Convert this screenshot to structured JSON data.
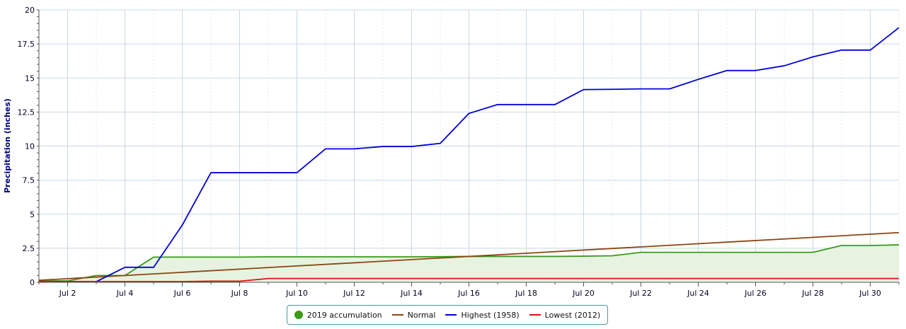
{
  "chart_data": {
    "type": "line",
    "title": "",
    "xlabel": "",
    "ylabel": "Precipitation (inches)",
    "ylim": [
      0,
      20
    ],
    "xlim": [
      1,
      31
    ],
    "y_ticks": [
      0,
      2.5,
      5,
      7.5,
      10,
      12.5,
      15,
      17.5,
      20
    ],
    "y_tick_labels": [
      "0",
      "2.5",
      "5",
      "7.5",
      "10",
      "12.5",
      "15",
      "17.5",
      "20"
    ],
    "x_ticks": [
      2,
      4,
      6,
      8,
      10,
      12,
      14,
      16,
      18,
      20,
      22,
      24,
      26,
      28,
      30
    ],
    "x_tick_labels": [
      "Jul 2",
      "Jul 4",
      "Jul 6",
      "Jul 8",
      "Jul 10",
      "Jul 12",
      "Jul 14",
      "Jul 16",
      "Jul 18",
      "Jul 20",
      "Jul 22",
      "Jul 24",
      "Jul 26",
      "Jul 28",
      "Jul 30"
    ],
    "grid": true,
    "legend_position": "bottom-center",
    "series": [
      {
        "name": "2019 accumulation",
        "color": "#3a9a1a",
        "fill": "#e6f3e0",
        "marker": "dot",
        "x": [
          1,
          2,
          3,
          4,
          5,
          6,
          7,
          8,
          9,
          10,
          11,
          12,
          13,
          14,
          15,
          16,
          17,
          18,
          19,
          20,
          21,
          22,
          23,
          24,
          25,
          26,
          27,
          28,
          29,
          30,
          31
        ],
        "values": [
          0.1,
          0.1,
          0.5,
          0.5,
          1.85,
          1.85,
          1.85,
          1.85,
          1.87,
          1.87,
          1.87,
          1.87,
          1.87,
          1.87,
          1.88,
          1.9,
          1.9,
          1.9,
          1.9,
          1.92,
          1.95,
          2.2,
          2.2,
          2.2,
          2.2,
          2.2,
          2.2,
          2.2,
          2.7,
          2.7,
          2.75
        ]
      },
      {
        "name": "Normal",
        "color": "#8b4513",
        "x": [
          1,
          31
        ],
        "values": [
          0.15,
          3.65
        ]
      },
      {
        "name": "Highest (1958)",
        "color": "#0000dd",
        "x": [
          1,
          2,
          3,
          4,
          5,
          6,
          7,
          8,
          9,
          10,
          11,
          12,
          13,
          14,
          15,
          16,
          17,
          18,
          19,
          20,
          21,
          22,
          23,
          24,
          25,
          26,
          27,
          28,
          29,
          30,
          31
        ],
        "values": [
          0.05,
          0.05,
          0.05,
          1.1,
          1.1,
          4.2,
          8.05,
          8.05,
          8.05,
          8.05,
          9.8,
          9.8,
          9.97,
          9.97,
          10.2,
          12.4,
          13.05,
          13.05,
          13.05,
          14.15,
          14.17,
          14.2,
          14.2,
          14.9,
          15.55,
          15.55,
          15.9,
          16.55,
          17.05,
          17.05,
          18.7
        ]
      },
      {
        "name": "Lowest (2012)",
        "color": "#e01010",
        "x": [
          1,
          2,
          3,
          4,
          5,
          6,
          7,
          8,
          9,
          10,
          11,
          12,
          13,
          14,
          15,
          16,
          17,
          18,
          19,
          20,
          21,
          22,
          23,
          24,
          25,
          26,
          27,
          28,
          29,
          30,
          31
        ],
        "values": [
          0.05,
          0.05,
          0.05,
          0.05,
          0.05,
          0.05,
          0.08,
          0.08,
          0.28,
          0.28,
          0.28,
          0.28,
          0.28,
          0.28,
          0.28,
          0.28,
          0.28,
          0.28,
          0.28,
          0.28,
          0.28,
          0.28,
          0.28,
          0.28,
          0.28,
          0.28,
          0.28,
          0.28,
          0.28,
          0.28,
          0.28
        ]
      }
    ]
  }
}
